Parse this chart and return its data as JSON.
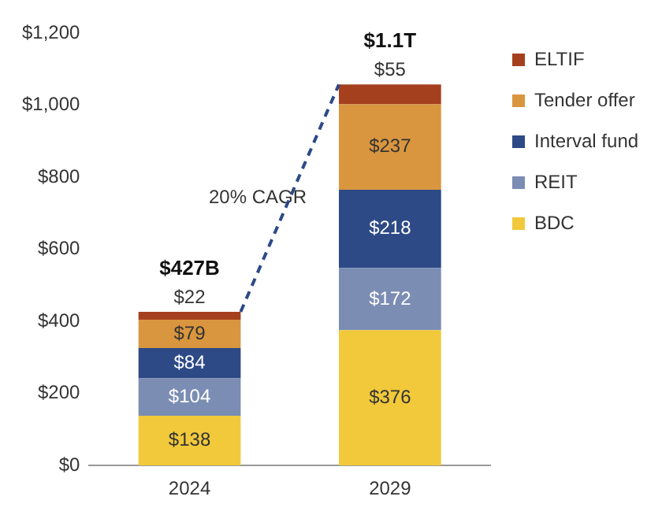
{
  "chart_data": {
    "type": "bar",
    "stacked": true,
    "categories": [
      "2024",
      "2029"
    ],
    "series": [
      {
        "name": "BDC",
        "color": "#f1c93b",
        "values": [
          138,
          376
        ],
        "value_labels": [
          "$138",
          "$376"
        ]
      },
      {
        "name": "REIT",
        "color": "#7b8db3",
        "values": [
          104,
          172
        ],
        "value_labels": [
          "$104",
          "$172"
        ]
      },
      {
        "name": "Interval fund",
        "color": "#2d4a86",
        "values": [
          84,
          218
        ],
        "value_labels": [
          "$84",
          "$218"
        ]
      },
      {
        "name": "Tender offer",
        "color": "#d9963f",
        "values": [
          79,
          237
        ],
        "value_labels": [
          "$79",
          "$237"
        ]
      },
      {
        "name": "ELTIF",
        "color": "#a5401e",
        "values": [
          22,
          55
        ],
        "value_labels": [
          "$22",
          "$55"
        ]
      }
    ],
    "totals": [
      "$427B",
      "$1.1T"
    ],
    "annotations": [
      "20% CAGR"
    ],
    "ylim": [
      0,
      1200
    ],
    "yticks": [
      {
        "value": 0,
        "label": "$0"
      },
      {
        "value": 200,
        "label": "$200"
      },
      {
        "value": 400,
        "label": "$400"
      },
      {
        "value": 600,
        "label": "$600"
      },
      {
        "value": 800,
        "label": "$800"
      },
      {
        "value": 1000,
        "label": "$1,000"
      },
      {
        "value": 1200,
        "label": "$1,200"
      }
    ],
    "grid": false,
    "legend": "right"
  }
}
